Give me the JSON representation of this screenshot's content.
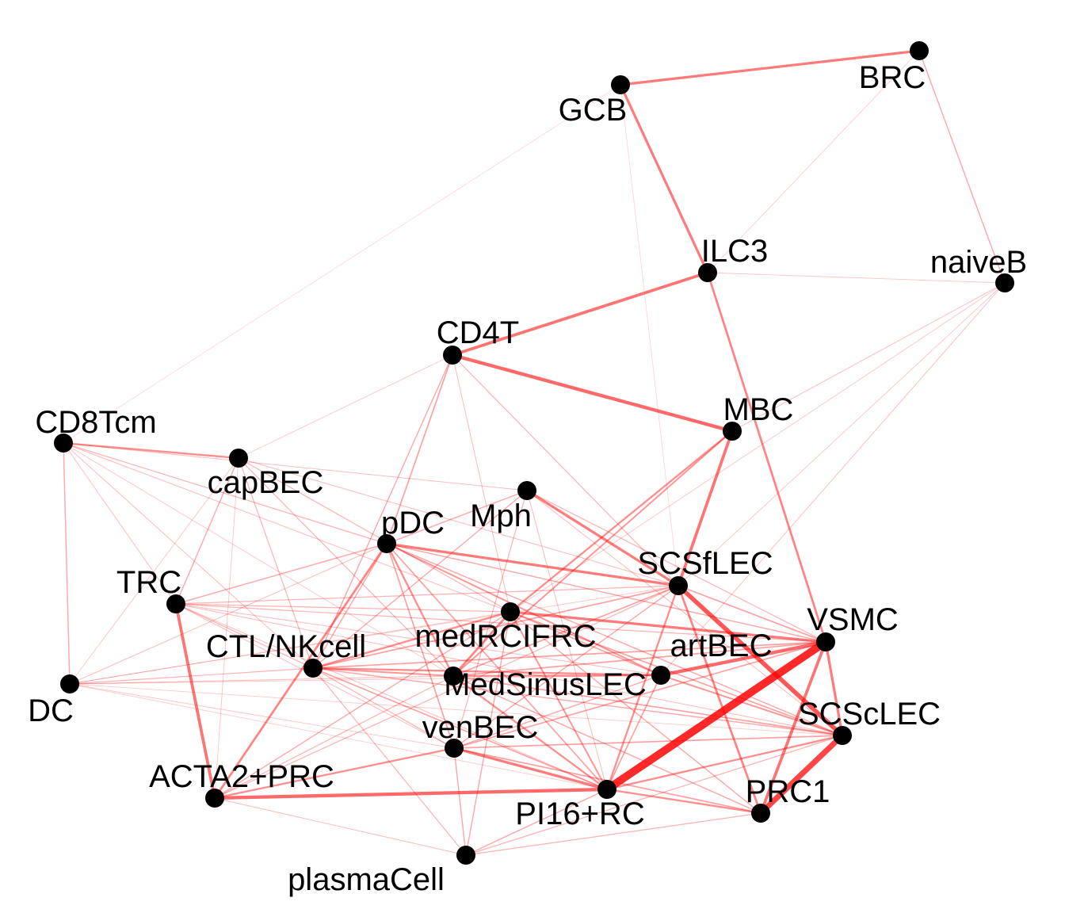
{
  "network": {
    "edge_color": "#ff0000",
    "node_color": "#000000",
    "nodes": [
      {
        "id": "GCB",
        "label": "GCB"
      },
      {
        "id": "BRC",
        "label": "BRC"
      },
      {
        "id": "ILC3",
        "label": "ILC3"
      },
      {
        "id": "naiveB",
        "label": "naiveB"
      },
      {
        "id": "CD4T",
        "label": "CD4T"
      },
      {
        "id": "MBC",
        "label": "MBC"
      },
      {
        "id": "CD8Tcm",
        "label": "CD8Tcm"
      },
      {
        "id": "capBEC",
        "label": "capBEC"
      },
      {
        "id": "Mph",
        "label": "Mph"
      },
      {
        "id": "pDC",
        "label": "pDC"
      },
      {
        "id": "SCSfLEC",
        "label": "SCSfLEC"
      },
      {
        "id": "TRC",
        "label": "TRC"
      },
      {
        "id": "medRCIFRC",
        "label": "medRCIFRC"
      },
      {
        "id": "VSMC",
        "label": "VSMC"
      },
      {
        "id": "CTLNKcell",
        "label": "CTL/NKcell"
      },
      {
        "id": "artBEC",
        "label": "artBEC"
      },
      {
        "id": "MedSinusLEC",
        "label": "MedSinusLEC"
      },
      {
        "id": "DC",
        "label": "DC"
      },
      {
        "id": "SCScLEC",
        "label": "SCScLEC"
      },
      {
        "id": "venBEC",
        "label": "venBEC"
      },
      {
        "id": "ACTA2PRC",
        "label": "ACTA2+PRC"
      },
      {
        "id": "PRC1",
        "label": "PRC1"
      },
      {
        "id": "PI16RC",
        "label": "PI16+RC"
      },
      {
        "id": "plasmaCell",
        "label": "plasmaCell"
      }
    ],
    "edges": [
      {
        "source": "GCB",
        "target": "BRC",
        "weight": 0.55
      },
      {
        "source": "GCB",
        "target": "ILC3",
        "weight": 0.55
      },
      {
        "source": "BRC",
        "target": "naiveB",
        "weight": 0.3
      },
      {
        "source": "BRC",
        "target": "ILC3",
        "weight": 0.12
      },
      {
        "source": "ILC3",
        "target": "CD4T",
        "weight": 0.6
      },
      {
        "source": "ILC3",
        "target": "VSMC",
        "weight": 0.5
      },
      {
        "source": "ILC3",
        "target": "naiveB",
        "weight": 0.15
      },
      {
        "source": "CD4T",
        "target": "MBC",
        "weight": 0.65
      },
      {
        "source": "MBC",
        "target": "SCSfLEC",
        "weight": 0.6
      },
      {
        "source": "MBC",
        "target": "medRCIFRC",
        "weight": 0.45
      },
      {
        "source": "MBC",
        "target": "MedSinusLEC",
        "weight": 0.4
      },
      {
        "source": "MBC",
        "target": "naiveB",
        "weight": 0.18
      },
      {
        "source": "naiveB",
        "target": "artBEC",
        "weight": 0.18
      },
      {
        "source": "naiveB",
        "target": "SCSfLEC",
        "weight": 0.15
      },
      {
        "source": "naiveB",
        "target": "medRCIFRC",
        "weight": 0.15
      },
      {
        "source": "GCB",
        "target": "SCSfLEC",
        "weight": 0.08
      },
      {
        "source": "GCB",
        "target": "CD8Tcm",
        "weight": 0.06
      },
      {
        "source": "CD4T",
        "target": "pDC",
        "weight": 0.35
      },
      {
        "source": "CD4T",
        "target": "CTLNKcell",
        "weight": 0.3
      },
      {
        "source": "CD4T",
        "target": "SCSfLEC",
        "weight": 0.25
      },
      {
        "source": "CD4T",
        "target": "capBEC",
        "weight": 0.15
      },
      {
        "source": "CD4T",
        "target": "medRCIFRC",
        "weight": 0.2
      },
      {
        "source": "CD8Tcm",
        "target": "capBEC",
        "weight": 0.45
      },
      {
        "source": "CD8Tcm",
        "target": "DC",
        "weight": 0.3
      },
      {
        "source": "CD8Tcm",
        "target": "pDC",
        "weight": 0.25
      },
      {
        "source": "CD8Tcm",
        "target": "TRC",
        "weight": 0.2
      },
      {
        "source": "CD8Tcm",
        "target": "CTLNKcell",
        "weight": 0.2
      },
      {
        "source": "CD8Tcm",
        "target": "medRCIFRC",
        "weight": 0.2
      },
      {
        "source": "CD8Tcm",
        "target": "MedSinusLEC",
        "weight": 0.15
      },
      {
        "source": "CD8Tcm",
        "target": "Mph",
        "weight": 0.2
      },
      {
        "source": "capBEC",
        "target": "TRC",
        "weight": 0.3
      },
      {
        "source": "capBEC",
        "target": "CTLNKcell",
        "weight": 0.25
      },
      {
        "source": "capBEC",
        "target": "medRCIFRC",
        "weight": 0.25
      },
      {
        "source": "capBEC",
        "target": "MedSinusLEC",
        "weight": 0.25
      },
      {
        "source": "capBEC",
        "target": "DC",
        "weight": 0.15
      },
      {
        "source": "capBEC",
        "target": "ACTA2PRC",
        "weight": 0.15
      },
      {
        "source": "capBEC",
        "target": "SCSfLEC",
        "weight": 0.2
      },
      {
        "source": "Mph",
        "target": "SCSfLEC",
        "weight": 0.55
      },
      {
        "source": "Mph",
        "target": "pDC",
        "weight": 0.3
      },
      {
        "source": "Mph",
        "target": "CTLNKcell",
        "weight": 0.3
      },
      {
        "source": "Mph",
        "target": "venBEC",
        "weight": 0.25
      },
      {
        "source": "Mph",
        "target": "PI16RC",
        "weight": 0.2
      },
      {
        "source": "Mph",
        "target": "VSMC",
        "weight": 0.25
      },
      {
        "source": "Mph",
        "target": "SCScLEC",
        "weight": 0.2
      },
      {
        "source": "pDC",
        "target": "SCSfLEC",
        "weight": 0.55
      },
      {
        "source": "pDC",
        "target": "ACTA2PRC",
        "weight": 0.5
      },
      {
        "source": "pDC",
        "target": "TRC",
        "weight": 0.3
      },
      {
        "source": "pDC",
        "target": "MedSinusLEC",
        "weight": 0.45
      },
      {
        "source": "pDC",
        "target": "venBEC",
        "weight": 0.35
      },
      {
        "source": "pDC",
        "target": "PI16RC",
        "weight": 0.35
      },
      {
        "source": "pDC",
        "target": "artBEC",
        "weight": 0.4
      },
      {
        "source": "pDC",
        "target": "CTLNKcell",
        "weight": 0.3
      },
      {
        "source": "pDC",
        "target": "DC",
        "weight": 0.2
      },
      {
        "source": "pDC",
        "target": "VSMC",
        "weight": 0.3
      },
      {
        "source": "pDC",
        "target": "SCScLEC",
        "weight": 0.3
      },
      {
        "source": "SCSfLEC",
        "target": "SCScLEC",
        "weight": 0.75
      },
      {
        "source": "SCSfLEC",
        "target": "PRC1",
        "weight": 0.5
      },
      {
        "source": "SCSfLEC",
        "target": "PI16RC",
        "weight": 0.45
      },
      {
        "source": "SCSfLEC",
        "target": "CTLNKcell",
        "weight": 0.35
      },
      {
        "source": "SCSfLEC",
        "target": "MedSinusLEC",
        "weight": 0.35
      },
      {
        "source": "SCSfLEC",
        "target": "TRC",
        "weight": 0.25
      },
      {
        "source": "SCSfLEC",
        "target": "venBEC",
        "weight": 0.3
      },
      {
        "source": "SCSfLEC",
        "target": "DC",
        "weight": 0.15
      },
      {
        "source": "SCSfLEC",
        "target": "ACTA2PRC",
        "weight": 0.25
      },
      {
        "source": "TRC",
        "target": "ACTA2PRC",
        "weight": 0.6
      },
      {
        "source": "TRC",
        "target": "medRCIFRC",
        "weight": 0.25
      },
      {
        "source": "TRC",
        "target": "CTLNKcell",
        "weight": 0.25
      },
      {
        "source": "TRC",
        "target": "VSMC",
        "weight": 0.25
      },
      {
        "source": "TRC",
        "target": "SCScLEC",
        "weight": 0.2
      },
      {
        "source": "TRC",
        "target": "artBEC",
        "weight": 0.2
      },
      {
        "source": "TRC",
        "target": "venBEC",
        "weight": 0.2
      },
      {
        "source": "TRC",
        "target": "PI16RC",
        "weight": 0.2
      },
      {
        "source": "medRCIFRC",
        "target": "VSMC",
        "weight": 0.55
      },
      {
        "source": "medRCIFRC",
        "target": "MedSinusLEC",
        "weight": 0.5
      },
      {
        "source": "medRCIFRC",
        "target": "CTLNKcell",
        "weight": 0.45
      },
      {
        "source": "medRCIFRC",
        "target": "PI16RC",
        "weight": 0.4
      },
      {
        "source": "medRCIFRC",
        "target": "artBEC",
        "weight": 0.35
      },
      {
        "source": "medRCIFRC",
        "target": "SCScLEC",
        "weight": 0.35
      },
      {
        "source": "medRCIFRC",
        "target": "plasmaCell",
        "weight": 0.3
      },
      {
        "source": "medRCIFRC",
        "target": "PRC1",
        "weight": 0.3
      },
      {
        "source": "medRCIFRC",
        "target": "ACTA2PRC",
        "weight": 0.3
      },
      {
        "source": "medRCIFRC",
        "target": "DC",
        "weight": 0.15
      },
      {
        "source": "VSMC",
        "target": "PI16RC",
        "weight": 1.0
      },
      {
        "source": "VSMC",
        "target": "artBEC",
        "weight": 0.65
      },
      {
        "source": "VSMC",
        "target": "SCScLEC",
        "weight": 0.55
      },
      {
        "source": "VSMC",
        "target": "PRC1",
        "weight": 0.6
      },
      {
        "source": "VSMC",
        "target": "MedSinusLEC",
        "weight": 0.35
      },
      {
        "source": "VSMC",
        "target": "CTLNKcell",
        "weight": 0.35
      },
      {
        "source": "VSMC",
        "target": "venBEC",
        "weight": 0.35
      },
      {
        "source": "VSMC",
        "target": "SCSfLEC",
        "weight": 0.35
      },
      {
        "source": "CTLNKcell",
        "target": "artBEC",
        "weight": 0.45
      },
      {
        "source": "CTLNKcell",
        "target": "MedSinusLEC",
        "weight": 0.4
      },
      {
        "source": "CTLNKcell",
        "target": "PI16RC",
        "weight": 0.35
      },
      {
        "source": "CTLNKcell",
        "target": "DC",
        "weight": 0.25
      },
      {
        "source": "CTLNKcell",
        "target": "SCScLEC",
        "weight": 0.3
      },
      {
        "source": "CTLNKcell",
        "target": "plasmaCell",
        "weight": 0.25
      },
      {
        "source": "CTLNKcell",
        "target": "venBEC",
        "weight": 0.25
      },
      {
        "source": "artBEC",
        "target": "MedSinusLEC",
        "weight": 0.45
      },
      {
        "source": "artBEC",
        "target": "PI16RC",
        "weight": 0.35
      },
      {
        "source": "artBEC",
        "target": "SCScLEC",
        "weight": 0.4
      },
      {
        "source": "artBEC",
        "target": "venBEC",
        "weight": 0.3
      },
      {
        "source": "artBEC",
        "target": "DC",
        "weight": 0.15
      },
      {
        "source": "MedSinusLEC",
        "target": "PI16RC",
        "weight": 0.45
      },
      {
        "source": "MedSinusLEC",
        "target": "SCScLEC",
        "weight": 0.35
      },
      {
        "source": "MedSinusLEC",
        "target": "DC",
        "weight": 0.2
      },
      {
        "source": "MedSinusLEC",
        "target": "PRC1",
        "weight": 0.3
      },
      {
        "source": "MedSinusLEC",
        "target": "ACTA2PRC",
        "weight": 0.25
      },
      {
        "source": "DC",
        "target": "SCScLEC",
        "weight": 0.12
      },
      {
        "source": "DC",
        "target": "venBEC",
        "weight": 0.15
      },
      {
        "source": "DC",
        "target": "PI16RC",
        "weight": 0.12
      },
      {
        "source": "SCScLEC",
        "target": "PRC1",
        "weight": 0.85
      },
      {
        "source": "SCScLEC",
        "target": "PI16RC",
        "weight": 0.45
      },
      {
        "source": "SCScLEC",
        "target": "venBEC",
        "weight": 0.35
      },
      {
        "source": "SCScLEC",
        "target": "plasmaCell",
        "weight": 0.25
      },
      {
        "source": "venBEC",
        "target": "PI16RC",
        "weight": 0.55
      },
      {
        "source": "venBEC",
        "target": "ACTA2PRC",
        "weight": 0.45
      },
      {
        "source": "venBEC",
        "target": "plasmaCell",
        "weight": 0.3
      },
      {
        "source": "venBEC",
        "target": "PRC1",
        "weight": 0.35
      },
      {
        "source": "ACTA2PRC",
        "target": "PI16RC",
        "weight": 0.65
      },
      {
        "source": "ACTA2PRC",
        "target": "plasmaCell",
        "weight": 0.2
      },
      {
        "source": "PRC1",
        "target": "PI16RC",
        "weight": 0.45
      },
      {
        "source": "PRC1",
        "target": "plasmaCell",
        "weight": 0.25
      },
      {
        "source": "PI16RC",
        "target": "plasmaCell",
        "weight": 0.3
      }
    ]
  }
}
